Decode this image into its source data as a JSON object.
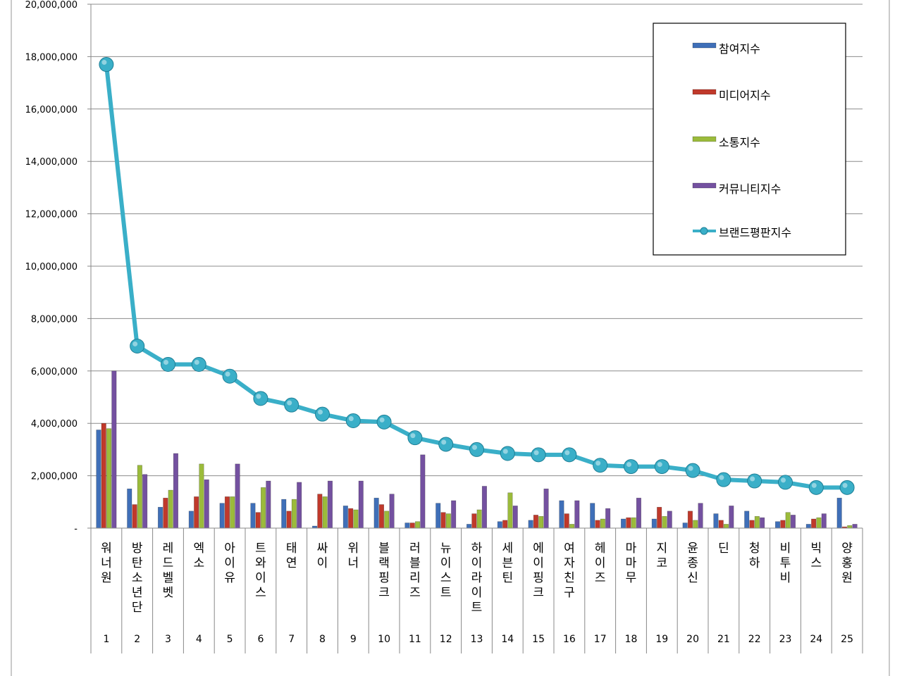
{
  "chart_data": {
    "type": "bar",
    "ylim": [
      0,
      20000000
    ],
    "yticks": [
      "-",
      "2,000,000",
      "4,000,000",
      "6,000,000",
      "8,000,000",
      "10,000,000",
      "12,000,000",
      "14,000,000",
      "16,000,000",
      "18,000,000",
      "20,000,000"
    ],
    "grid": true,
    "legend_position": "top-right",
    "ranks": [
      "1",
      "2",
      "3",
      "4",
      "5",
      "6",
      "7",
      "8",
      "9",
      "10",
      "11",
      "12",
      "13",
      "14",
      "15",
      "16",
      "17",
      "18",
      "19",
      "20",
      "21",
      "22",
      "23",
      "24",
      "25"
    ],
    "categories": [
      "워너원",
      "방탄소년단",
      "레드벨벳",
      "엑소",
      "아이유",
      "트와이스",
      "태연",
      "싸이",
      "위너",
      "블랙핑크",
      "러블리즈",
      "뉴이스트",
      "하이라이트",
      "세븐틴",
      "에이핑크",
      "여자친구",
      "헤이즈",
      "마마무",
      "지코",
      "윤종신",
      "딘",
      "청하",
      "비투비",
      "빅스",
      "양홍원"
    ],
    "series": [
      {
        "name": "참여지수",
        "color": "#3f6fb8",
        "values": [
          3750000,
          1500000,
          800000,
          650000,
          950000,
          950000,
          1100000,
          80000,
          850000,
          1150000,
          200000,
          950000,
          150000,
          250000,
          300000,
          1050000,
          950000,
          350000,
          350000,
          200000,
          550000,
          650000,
          250000,
          150000,
          1150000
        ]
      },
      {
        "name": "미디어지수",
        "color": "#c0392b",
        "values": [
          4000000,
          900000,
          1150000,
          1200000,
          1200000,
          600000,
          650000,
          1300000,
          750000,
          900000,
          200000,
          600000,
          550000,
          300000,
          500000,
          550000,
          300000,
          400000,
          800000,
          650000,
          300000,
          300000,
          300000,
          350000,
          50000
        ]
      },
      {
        "name": "소통지수",
        "color": "#9bbb3b",
        "values": [
          3800000,
          2400000,
          1450000,
          2450000,
          1200000,
          1550000,
          1100000,
          1200000,
          700000,
          650000,
          250000,
          550000,
          700000,
          1350000,
          450000,
          150000,
          350000,
          400000,
          450000,
          300000,
          150000,
          450000,
          600000,
          400000,
          100000
        ]
      },
      {
        "name": "커뮤니티지수",
        "color": "#7451a0",
        "values": [
          6000000,
          2050000,
          2850000,
          1850000,
          2450000,
          1800000,
          1750000,
          1800000,
          1800000,
          1300000,
          2800000,
          1050000,
          1600000,
          850000,
          1500000,
          1050000,
          750000,
          1150000,
          650000,
          950000,
          850000,
          400000,
          500000,
          550000,
          150000
        ]
      }
    ],
    "line": {
      "name": "브랜드평판지수",
      "color": "#3aafc8",
      "values": [
        17700000,
        6950000,
        6250000,
        6250000,
        5800000,
        4950000,
        4700000,
        4350000,
        4100000,
        4050000,
        3450000,
        3200000,
        3000000,
        2850000,
        2800000,
        2800000,
        2400000,
        2350000,
        2350000,
        2200000,
        1850000,
        1800000,
        1750000,
        1550000,
        1550000
      ]
    }
  }
}
